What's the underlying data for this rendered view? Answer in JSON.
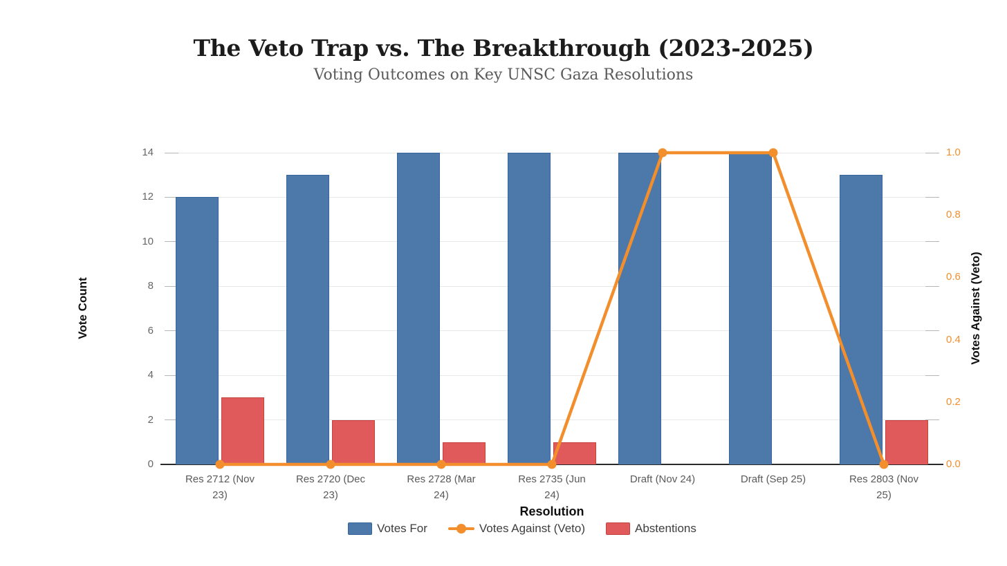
{
  "chart_data": {
    "type": "bar",
    "subtype": "grouped-bars-with-line-overlay",
    "title": "The Veto Trap vs. The Breakthrough (2023-2025)",
    "subtitle": "Voting Outcomes on Key UNSC Gaza Resolutions",
    "categories": [
      "Res 2712 (Nov 23)",
      "Res 2720 (Dec 23)",
      "Res 2728 (Mar 24)",
      "Res 2735 (Jun 24)",
      "Draft (Nov 24)",
      "Draft (Sep 25)",
      "Res 2803 (Nov 25)"
    ],
    "x_tick_lines": [
      [
        "Res 2712 (Nov",
        "23)"
      ],
      [
        "Res 2720 (Dec",
        "23)"
      ],
      [
        "Res 2728 (Mar",
        "24)"
      ],
      [
        "Res 2735 (Jun",
        "24)"
      ],
      [
        "Draft (Nov 24)"
      ],
      [
        "Draft (Sep 25)"
      ],
      [
        "Res 2803 (Nov",
        "25)"
      ]
    ],
    "series": [
      {
        "name": "Votes For",
        "type": "bar",
        "yaxis": "left",
        "color": "#4c79a9",
        "border_color": "#34649a",
        "values": [
          12,
          13,
          14,
          14,
          14,
          14,
          13
        ]
      },
      {
        "name": "Votes Against (Veto)",
        "type": "line",
        "yaxis": "right",
        "color": "#f28e2b",
        "values": [
          0,
          0,
          0,
          0,
          1,
          1,
          0
        ]
      },
      {
        "name": "Abstentions",
        "type": "bar",
        "yaxis": "left",
        "color": "#e05a5c",
        "border_color": "#c4423f",
        "values": [
          3,
          2,
          1,
          1,
          0,
          0,
          2
        ]
      }
    ],
    "xlabel": "Resolution",
    "left_axis": {
      "label": "Vote Count",
      "ticks": [
        "0",
        "2",
        "4",
        "6",
        "8",
        "10",
        "12",
        "14"
      ],
      "range": [
        0,
        14
      ],
      "tick_color": "#666666"
    },
    "right_axis": {
      "label": "Votes Against (Veto)",
      "ticks": [
        "0.0",
        "0.2",
        "0.4",
        "0.6",
        "0.8",
        "1.0"
      ],
      "range": [
        0,
        1
      ],
      "tick_color": "#f28e2b"
    },
    "legend": {
      "position": "bottom",
      "items": [
        "Votes For",
        "Votes Against (Veto)",
        "Abstentions"
      ]
    },
    "grid": "horizontal-only",
    "background": "#ffffff"
  }
}
